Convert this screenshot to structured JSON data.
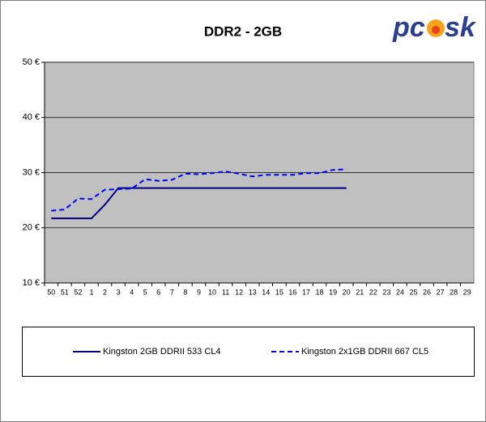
{
  "chart_data": {
    "type": "line",
    "title": "DDR2 - 2GB",
    "logo": {
      "left": "pc",
      "right": "sk"
    },
    "categories": [
      "50",
      "51",
      "52",
      "1",
      "2",
      "3",
      "4",
      "5",
      "6",
      "7",
      "8",
      "9",
      "10",
      "11",
      "12",
      "13",
      "14",
      "15",
      "16",
      "17",
      "18",
      "19",
      "20",
      "21",
      "22",
      "23",
      "24",
      "25",
      "26",
      "27",
      "28",
      "29"
    ],
    "series": [
      {
        "name": "Kingston 2GB DDRII 533 CL4",
        "color": "#000080",
        "style": "solid",
        "values": [
          21.7,
          21.7,
          21.7,
          21.7,
          24.2,
          27.2,
          27.2,
          27.2,
          27.2,
          27.2,
          27.2,
          27.2,
          27.2,
          27.2,
          27.2,
          27.2,
          27.2,
          27.2,
          27.2,
          27.2,
          27.2,
          27.2,
          27.2,
          null,
          null,
          null,
          null,
          null,
          null,
          null,
          null,
          null
        ]
      },
      {
        "name": "Kingston 2x1GB DDRII 667 CL5",
        "color": "#0000ff",
        "style": "dashed",
        "values": [
          23.1,
          23.3,
          25.3,
          25.2,
          26.9,
          27.0,
          27.1,
          28.8,
          28.5,
          28.7,
          29.8,
          29.7,
          29.9,
          30.2,
          29.8,
          29.3,
          29.6,
          29.6,
          29.6,
          29.9,
          29.9,
          30.5,
          30.6,
          null,
          null,
          null,
          null,
          null,
          null,
          null,
          null,
          null
        ]
      }
    ],
    "ylim": [
      10,
      50
    ],
    "yticks": [
      {
        "value": 10,
        "label": "10 €"
      },
      {
        "value": 20,
        "label": "20 €"
      },
      {
        "value": 30,
        "label": "30 €"
      },
      {
        "value": 40,
        "label": "40 €"
      },
      {
        "value": 50,
        "label": "50 €"
      }
    ],
    "grid": true,
    "plot_background": "#c0c0c0",
    "legend": "bottom"
  }
}
